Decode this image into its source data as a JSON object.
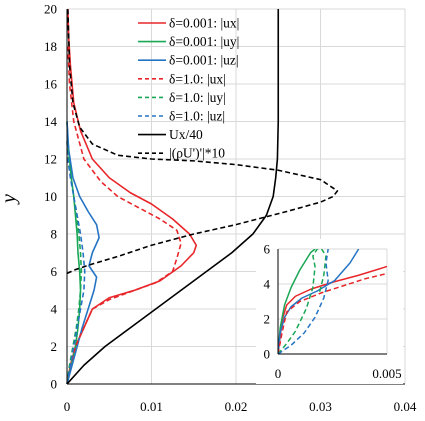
{
  "chart_data": [
    {
      "type": "line",
      "title": "",
      "xlabel": "",
      "ylabel": "y",
      "xlim": [
        0,
        0.04
      ],
      "ylim": [
        0,
        20
      ],
      "x_ticks": [
        "0",
        "0.01",
        "0.02",
        "0.03",
        "0.04"
      ],
      "y_ticks": [
        "0",
        "2",
        "4",
        "6",
        "8",
        "10",
        "12",
        "14",
        "16",
        "18",
        "20"
      ],
      "grid": true,
      "legend_position": "top-right",
      "series": [
        {
          "name": "δ=0.001: |ux|",
          "color": "#e8262a",
          "dash": "solid",
          "points": [
            [
              0.0,
              0.0
            ],
            [
              0.0004,
              1.0
            ],
            [
              0.001,
              2.0
            ],
            [
              0.002,
              3.0
            ],
            [
              0.003,
              4.0
            ],
            [
              0.005,
              4.6
            ],
            [
              0.008,
              5.0
            ],
            [
              0.011,
              5.5
            ],
            [
              0.0135,
              6.3
            ],
            [
              0.015,
              7.0
            ],
            [
              0.0153,
              7.4
            ],
            [
              0.0145,
              8.0
            ],
            [
              0.0125,
              8.8
            ],
            [
              0.01,
              9.6
            ],
            [
              0.0075,
              10.2
            ],
            [
              0.005,
              11.0
            ],
            [
              0.003,
              12.0
            ],
            [
              0.0016,
              13.5
            ],
            [
              0.0008,
              15.0
            ],
            [
              0.0004,
              17.0
            ],
            [
              0.0002,
              18.5
            ],
            [
              0.0001,
              20.0
            ]
          ]
        },
        {
          "name": "δ=0.001: |uy|",
          "color": "#1aa756",
          "dash": "solid",
          "points": [
            [
              0.0,
              0.0
            ],
            [
              0.0005,
              1.0
            ],
            [
              0.001,
              2.0
            ],
            [
              0.0013,
              3.0
            ],
            [
              0.0015,
              4.0
            ],
            [
              0.0016,
              5.0
            ],
            [
              0.0015,
              6.0
            ],
            [
              0.0013,
              7.0
            ],
            [
              0.0012,
              8.0
            ],
            [
              0.001,
              9.0
            ],
            [
              0.0008,
              10.0
            ],
            [
              0.0005,
              11.0
            ],
            [
              0.0003,
              12.0
            ],
            [
              0.0001,
              13.0
            ],
            [
              0.0,
              14.0
            ]
          ]
        },
        {
          "name": "δ=0.001: |uz|",
          "color": "#2574c4",
          "dash": "solid",
          "points": [
            [
              0.0,
              0.0
            ],
            [
              0.0006,
              1.0
            ],
            [
              0.0012,
              2.0
            ],
            [
              0.0018,
              3.0
            ],
            [
              0.0025,
              4.0
            ],
            [
              0.0032,
              5.0
            ],
            [
              0.0035,
              5.7
            ],
            [
              0.0026,
              6.3
            ],
            [
              0.003,
              7.0
            ],
            [
              0.0038,
              7.8
            ],
            [
              0.0035,
              8.5
            ],
            [
              0.0025,
              9.2
            ],
            [
              0.0015,
              10.0
            ],
            [
              0.0007,
              11.0
            ],
            [
              0.0002,
              12.5
            ],
            [
              0.0,
              14.0
            ]
          ]
        },
        {
          "name": "δ=1.0: |ux|",
          "color": "#e8262a",
          "dash": "dashed",
          "points": [
            [
              0.0,
              0.0
            ],
            [
              0.0004,
              1.0
            ],
            [
              0.001,
              2.0
            ],
            [
              0.002,
              3.0
            ],
            [
              0.003,
              4.0
            ],
            [
              0.005,
              4.5
            ],
            [
              0.008,
              5.0
            ],
            [
              0.0105,
              5.4
            ],
            [
              0.0125,
              6.0
            ],
            [
              0.013,
              6.7
            ],
            [
              0.0135,
              7.5
            ],
            [
              0.013,
              8.2
            ],
            [
              0.011,
              8.8
            ],
            [
              0.0085,
              9.4
            ],
            [
              0.006,
              10.0
            ],
            [
              0.004,
              10.8
            ],
            [
              0.002,
              12.0
            ],
            [
              0.0008,
              14.0
            ],
            [
              0.0003,
              16.0
            ],
            [
              0.0001,
              18.0
            ]
          ]
        },
        {
          "name": "δ=1.0: |uy|",
          "color": "#1aa756",
          "dash": "dashed",
          "points": [
            [
              0.0,
              0.0
            ],
            [
              0.0003,
              1.0
            ],
            [
              0.0007,
              2.0
            ],
            [
              0.0011,
              3.0
            ],
            [
              0.0014,
              4.0
            ],
            [
              0.0016,
              5.0
            ],
            [
              0.0017,
              6.0
            ],
            [
              0.0016,
              7.0
            ],
            [
              0.0014,
              8.0
            ],
            [
              0.0011,
              9.0
            ],
            [
              0.0008,
              10.0
            ],
            [
              0.0005,
              11.0
            ],
            [
              0.0002,
              12.0
            ],
            [
              0.0,
              13.0
            ]
          ]
        },
        {
          "name": "δ=1.0: |uz|",
          "color": "#2574c4",
          "dash": "dashed",
          "points": [
            [
              0.0,
              0.0
            ],
            [
              0.0004,
              1.0
            ],
            [
              0.0008,
              2.0
            ],
            [
              0.0012,
              3.0
            ],
            [
              0.0016,
              4.0
            ],
            [
              0.002,
              5.0
            ],
            [
              0.0021,
              6.0
            ],
            [
              0.0019,
              7.0
            ],
            [
              0.0016,
              8.0
            ],
            [
              0.0012,
              9.0
            ],
            [
              0.0008,
              10.0
            ],
            [
              0.0004,
              11.0
            ],
            [
              0.0001,
              12.0
            ],
            [
              0.0,
              13.0
            ]
          ]
        },
        {
          "name": "Ux/40",
          "color": "#000000",
          "dash": "solid",
          "points": [
            [
              0.0,
              0.0
            ],
            [
              0.002,
              1.0
            ],
            [
              0.0045,
              2.0
            ],
            [
              0.0075,
              3.0
            ],
            [
              0.0105,
              4.0
            ],
            [
              0.0135,
              5.0
            ],
            [
              0.0165,
              6.0
            ],
            [
              0.0195,
              7.0
            ],
            [
              0.022,
              8.0
            ],
            [
              0.0236,
              9.0
            ],
            [
              0.0244,
              10.0
            ],
            [
              0.0247,
              11.0
            ],
            [
              0.0249,
              12.0
            ],
            [
              0.025,
              14.0
            ],
            [
              0.025,
              20.0
            ]
          ]
        },
        {
          "name": "|(ρU')'|*10",
          "color": "#000000",
          "dash": "dashed",
          "points": [
            [
              0.0,
              5.9
            ],
            [
              0.001,
              6.1
            ],
            [
              0.003,
              6.4
            ],
            [
              0.006,
              6.8
            ],
            [
              0.01,
              7.4
            ],
            [
              0.015,
              8.0
            ],
            [
              0.02,
              8.5
            ],
            [
              0.026,
              9.2
            ],
            [
              0.03,
              9.7
            ],
            [
              0.0315,
              10.0
            ],
            [
              0.032,
              10.3
            ],
            [
              0.03,
              10.9
            ],
            [
              0.025,
              11.4
            ],
            [
              0.02,
              11.7
            ],
            [
              0.015,
              11.9
            ],
            [
              0.01,
              12.0
            ],
            [
              0.006,
              12.2
            ],
            [
              0.003,
              12.8
            ],
            [
              0.0015,
              13.7
            ],
            [
              0.0007,
              15.0
            ],
            [
              0.0003,
              17.0
            ],
            [
              0.0001,
              20.0
            ]
          ]
        }
      ]
    },
    {
      "type": "line",
      "title": "",
      "xlabel": "",
      "ylabel": "",
      "xlim": [
        0,
        0.005
      ],
      "ylim": [
        0,
        6
      ],
      "x_ticks": [
        "0",
        "0.005"
      ],
      "y_ticks": [
        "0",
        "2",
        "4",
        "6"
      ],
      "grid": true,
      "legend_position": "",
      "series": [
        {
          "name": "δ=0.001: |ux|",
          "color": "#e8262a",
          "dash": "solid",
          "points": [
            [
              0.0,
              0.0
            ],
            [
              0.0001,
              1.0
            ],
            [
              0.0002,
              2.0
            ],
            [
              0.0004,
              2.8
            ],
            [
              0.0008,
              3.3
            ],
            [
              0.0015,
              3.7
            ],
            [
              0.0025,
              4.1
            ],
            [
              0.0037,
              4.5
            ],
            [
              0.005,
              5.0
            ]
          ]
        },
        {
          "name": "δ=0.001: |uy|",
          "color": "#1aa756",
          "dash": "solid",
          "points": [
            [
              0.0,
              0.0
            ],
            [
              0.0001,
              1.5
            ],
            [
              0.0003,
              2.8
            ],
            [
              0.0006,
              3.8
            ],
            [
              0.001,
              4.8
            ],
            [
              0.0015,
              5.8
            ],
            [
              0.0017,
              6.0
            ]
          ]
        },
        {
          "name": "δ=0.001: |uz|",
          "color": "#2574c4",
          "dash": "solid",
          "points": [
            [
              0.0,
              0.0
            ],
            [
              0.0001,
              1.2
            ],
            [
              0.0003,
              2.1
            ],
            [
              0.0006,
              2.7
            ],
            [
              0.0011,
              3.2
            ],
            [
              0.0018,
              3.6
            ],
            [
              0.0026,
              4.2
            ],
            [
              0.0033,
              5.2
            ],
            [
              0.0037,
              6.0
            ]
          ]
        },
        {
          "name": "δ=1.0: |ux|",
          "color": "#e8262a",
          "dash": "dashed",
          "points": [
            [
              0.0,
              0.0
            ],
            [
              0.0002,
              1.3
            ],
            [
              0.0004,
              2.4
            ],
            [
              0.001,
              3.0
            ],
            [
              0.002,
              3.5
            ],
            [
              0.003,
              3.9
            ],
            [
              0.004,
              4.3
            ],
            [
              0.005,
              4.6
            ]
          ]
        },
        {
          "name": "δ=1.0: |uy|",
          "color": "#1aa756",
          "dash": "dashed",
          "points": [
            [
              0.0,
              0.0
            ],
            [
              0.0004,
              0.6
            ],
            [
              0.0008,
              1.3
            ],
            [
              0.0013,
              2.6
            ],
            [
              0.0016,
              3.8
            ],
            [
              0.0017,
              5.0
            ],
            [
              0.0016,
              5.6
            ],
            [
              0.0018,
              6.0
            ],
            [
              0.002,
              6.0
            ],
            [
              0.0022,
              5.6
            ],
            [
              0.0021,
              4.5
            ],
            [
              0.0019,
              3.5
            ]
          ]
        },
        {
          "name": "δ=1.0: |uz|",
          "color": "#2574c4",
          "dash": "dashed",
          "points": [
            [
              0.0,
              0.0
            ],
            [
              0.0006,
              0.5
            ],
            [
              0.0012,
              1.2
            ],
            [
              0.0017,
              2.1
            ],
            [
              0.0021,
              3.2
            ],
            [
              0.0023,
              4.2
            ],
            [
              0.0022,
              5.2
            ],
            [
              0.0023,
              6.0
            ]
          ]
        }
      ]
    }
  ]
}
